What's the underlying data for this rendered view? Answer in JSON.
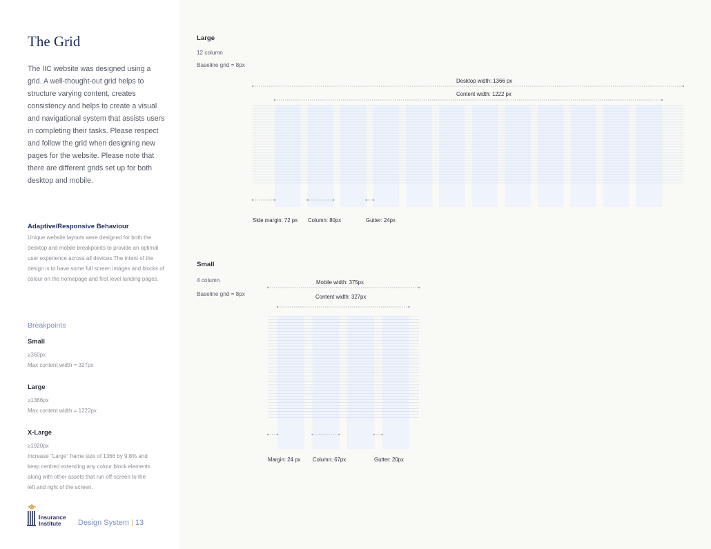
{
  "left": {
    "title": "The Grid",
    "intro": "The IIC website was designed using a grid. A well-thought-out grid helps to structure varying content, creates consistency and helps to create a visual and navigational system that assists users in completing their tasks. Please respect and follow the grid when designing new pages for the website. Please note that there are different grids set up for both desktop and mobile.",
    "adaptive": {
      "heading": "Adaptive/Responsive Behaviour",
      "body": "Unique website layouts were designed for both the desktop and mobile breakpoints to provide an optimal user experience across all devices.The intent of the design is to have some full screen images and blocks of colour on the homepage and first level landing pages."
    },
    "breakpoints": {
      "title": "Breakpoints",
      "small": {
        "heading": "Small",
        "line1": "≥360px",
        "line2": "Max content width = 327px"
      },
      "large": {
        "heading": "Large",
        "line1": "≥1366px",
        "line2": "Max content width = 1222px"
      },
      "xlarge": {
        "heading": "X-Large",
        "line1": "≥1920px",
        "body": "Increase \"Large\" frame size of 1366 by 9.8% and keep centred extending any colour block elements along with other assets that run off-screen to the left and right of the screen."
      }
    },
    "logo": {
      "line1": "Insurance",
      "line2": "Institute"
    },
    "footer": {
      "label": "Design System",
      "separator": "|",
      "page": "13"
    }
  },
  "large_grid": {
    "heading": "Large",
    "columns_text": "12 column",
    "baseline_text": "Baseline grid = 8px",
    "desktop_width": "Desktop width: 1366 px",
    "content_width": "Content width: 1222 px",
    "side_margin": "Side margin: 72 px",
    "column": "Column: 80px",
    "gutter": "Gutter: 24px",
    "column_count": 12
  },
  "small_grid": {
    "heading": "Small",
    "columns_text": "4 column",
    "baseline_text": "Baseline grid = 8px",
    "mobile_width": "Mobile width: 375px",
    "content_width": "Content width: 327px",
    "margin": "Margin: 24 px",
    "column": "Column: 67px",
    "gutter": "Gutter: 20px",
    "column_count": 4
  },
  "colors": {
    "navy": "#1d2a5c",
    "accent_blue": "#7a8fc4",
    "column_fill": "#eef3fc",
    "baseline_line": "#c9d3e6",
    "gold": "#d9b36a"
  }
}
